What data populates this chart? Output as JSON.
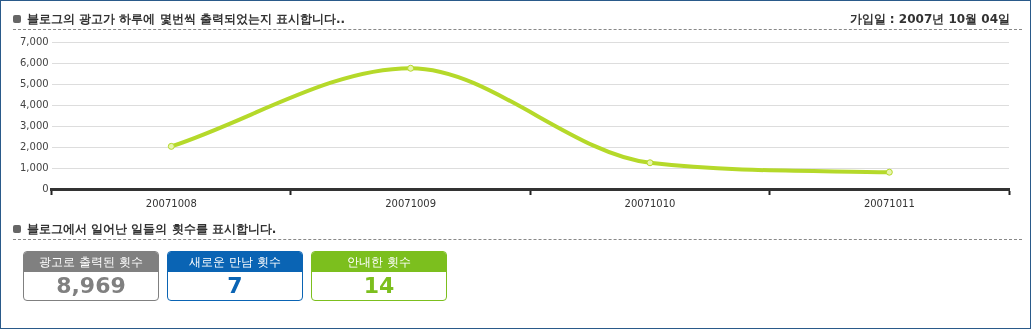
{
  "chart_data": [
    {
      "type": "line",
      "title": "블로그의 광고가 하루에 몇번씩 출력되었는지 표시합니다..",
      "subtitle": "가입일 : 2007년 10월 04일",
      "categories": [
        "20071008",
        "20071009",
        "20071010",
        "20071011"
      ],
      "series": [
        {
          "color": "#b5d92a",
          "values": [
            2030,
            5750,
            1250,
            800
          ]
        }
      ],
      "ylim": [
        0,
        7000
      ],
      "yticks": [
        0,
        {
          "value": 1000,
          "label": "1,000"
        },
        {
          "value": 2000,
          "label": "2,000"
        },
        {
          "value": 3000,
          "label": "3,000"
        },
        {
          "value": 4000,
          "label": "4,000"
        },
        {
          "value": 5000,
          "label": "5,000"
        },
        {
          "value": 6000,
          "label": "6,000"
        },
        {
          "value": 7000,
          "label": "7,000"
        }
      ],
      "grid": "y",
      "legend": false,
      "marker": "circle",
      "line_style": "solid"
    },
    {
      "type": "other",
      "title": "블로그에서 일어난 일들의 횟수를 표시합니다.",
      "categories": [
        "광고로 출력된 횟수",
        "새로운 만남 횟수",
        "안내한 횟수"
      ],
      "value_labels": [
        "8,969",
        "7",
        "14"
      ],
      "colors": [
        "#808080",
        "#0a64b4",
        "#7cbf1e"
      ]
    }
  ]
}
